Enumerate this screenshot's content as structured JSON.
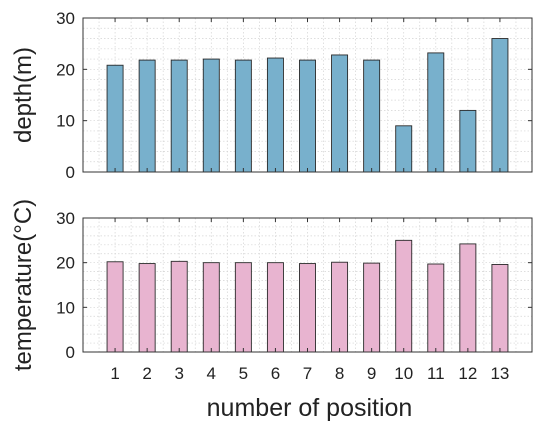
{
  "chart_data": [
    {
      "type": "bar",
      "ylabel": "depth(m)",
      "ylim": [
        0,
        30
      ],
      "yticks": [
        0,
        10,
        20,
        30
      ],
      "grid": true,
      "color": "#78b0cc",
      "categories": [
        "1",
        "2",
        "3",
        "4",
        "5",
        "6",
        "7",
        "8",
        "9",
        "10",
        "11",
        "12",
        "13"
      ],
      "values": [
        20.8,
        21.8,
        21.8,
        22.0,
        21.8,
        22.2,
        21.8,
        22.8,
        21.8,
        9.0,
        23.2,
        12.0,
        26.0
      ]
    },
    {
      "type": "bar",
      "ylabel": "temperature(°C)",
      "xlabel": "number of position",
      "ylim": [
        0,
        30
      ],
      "yticks": [
        0,
        10,
        20,
        30
      ],
      "grid": true,
      "color": "#e8b4d0",
      "categories": [
        "1",
        "2",
        "3",
        "4",
        "5",
        "6",
        "7",
        "8",
        "9",
        "10",
        "11",
        "12",
        "13"
      ],
      "values": [
        20.2,
        19.8,
        20.3,
        20.0,
        20.0,
        20.0,
        19.8,
        20.1,
        19.9,
        25.0,
        19.7,
        24.2,
        19.6
      ]
    }
  ]
}
